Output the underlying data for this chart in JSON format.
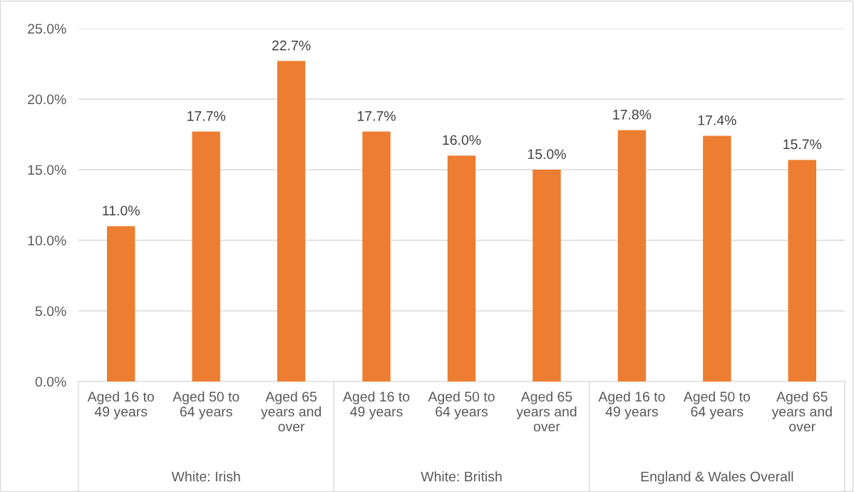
{
  "chart_data": {
    "type": "bar",
    "categories": [
      "Aged 16 to 49 years",
      "Aged 50 to 64 years",
      "Aged 65 years and over",
      "Aged 16 to 49 years",
      "Aged 50 to 64 years",
      "Aged 65 years and over",
      "Aged 16 to 49 years",
      "Aged 50 to 64 years",
      "Aged 65 years and over"
    ],
    "values": [
      11.0,
      17.7,
      22.7,
      17.7,
      16.0,
      15.0,
      17.8,
      17.4,
      15.7
    ],
    "value_labels": [
      "11.0%",
      "17.7%",
      "22.7%",
      "17.7%",
      "16.0%",
      "15.0%",
      "17.8%",
      "17.4%",
      "15.7%"
    ],
    "color": "#ed7d31",
    "annotations": [
      "White: Irish",
      "White: British",
      "England & Wales Overall"
    ],
    "ylim": [
      0,
      25
    ],
    "yticks": [
      {
        "value": 0,
        "label": "0.0%"
      },
      {
        "value": 5,
        "label": "5.0%"
      },
      {
        "value": 10,
        "label": "10.0%"
      },
      {
        "value": 15,
        "label": "15.0%"
      },
      {
        "value": 20,
        "label": "20.0%"
      },
      {
        "value": 25,
        "label": "25.0%"
      }
    ],
    "grid": "y",
    "legend": false
  }
}
